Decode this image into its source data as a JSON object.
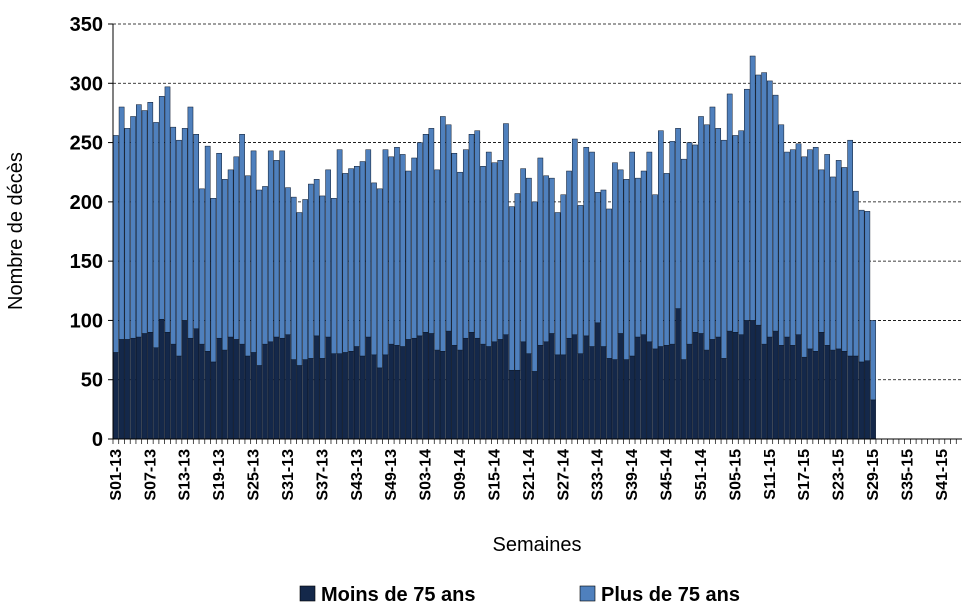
{
  "chart_data": {
    "type": "stacked_bar",
    "y_label": "Nombre de décès",
    "x_label": "Semaines",
    "categories": [
      "S01-13",
      null,
      null,
      null,
      null,
      null,
      "S07-13",
      null,
      null,
      null,
      null,
      null,
      "S13-13",
      null,
      null,
      null,
      null,
      null,
      "S19-13",
      null,
      null,
      null,
      null,
      null,
      "S25-13",
      null,
      null,
      null,
      null,
      null,
      "S31-13",
      null,
      null,
      null,
      null,
      null,
      "S37-13",
      null,
      null,
      null,
      null,
      null,
      "S43-13",
      null,
      null,
      null,
      null,
      null,
      "S49-13",
      null,
      null,
      null,
      null,
      null,
      "S03-14",
      null,
      null,
      null,
      null,
      null,
      "S09-14",
      null,
      null,
      null,
      null,
      null,
      "S15-14",
      null,
      null,
      null,
      null,
      null,
      "S21-14",
      null,
      null,
      null,
      null,
      null,
      "S27-14",
      null,
      null,
      null,
      null,
      null,
      "S33-14",
      null,
      null,
      null,
      null,
      null,
      "S39-14",
      null,
      null,
      null,
      null,
      null,
      "S45-14",
      null,
      null,
      null,
      null,
      null,
      "S51-14",
      null,
      null,
      null,
      null,
      null,
      "S05-15",
      null,
      null,
      null,
      null,
      null,
      "S11-15",
      null,
      null,
      null,
      null,
      null,
      "S17-15",
      null,
      null,
      null,
      null,
      null,
      "S23-15",
      null,
      null,
      null,
      null,
      null,
      "S29-15",
      null,
      null,
      null,
      null,
      null,
      "S35-15",
      null,
      null,
      null,
      null,
      null,
      "S41-15",
      null,
      null,
      null
    ],
    "series": [
      {
        "name": "Moins de 75 ans",
        "color": "#14284a",
        "values": [
          73,
          84,
          84,
          85,
          86,
          89,
          90,
          77,
          101,
          90,
          80,
          70,
          100,
          85,
          93,
          80,
          74,
          65,
          85,
          75,
          86,
          84,
          80,
          70,
          73,
          62,
          80,
          82,
          86,
          85,
          88,
          67,
          62,
          67,
          68,
          87,
          68,
          86,
          72,
          72,
          73,
          74,
          78,
          70,
          86,
          71,
          60,
          71,
          80,
          79,
          78,
          84,
          85,
          87,
          90,
          89,
          75,
          74,
          91,
          79,
          75,
          85,
          90,
          85,
          80,
          78,
          82,
          84,
          88,
          58,
          58,
          82,
          72,
          57,
          79,
          82,
          89,
          71,
          71,
          85,
          88,
          72,
          87,
          78,
          98,
          78,
          68,
          67,
          89,
          67,
          70,
          86,
          88,
          82,
          76,
          78,
          79,
          80,
          110,
          67,
          80,
          90,
          89,
          75,
          84,
          86,
          68,
          91,
          90,
          88,
          100,
          100,
          96,
          80,
          86,
          91,
          79,
          86,
          79,
          88,
          69,
          76,
          74,
          90,
          79,
          75,
          76,
          74,
          70,
          70,
          65,
          66,
          33,
          null,
          null,
          null,
          null,
          null,
          null,
          null,
          null,
          null,
          null,
          null,
          null,
          null,
          null,
          null
        ]
      },
      {
        "name": "Plus de 75 ans",
        "color": "#4f80bd",
        "values": [
          183,
          196,
          178,
          187,
          196,
          188,
          194,
          190,
          188,
          207,
          183,
          182,
          162,
          195,
          164,
          131,
          173,
          138,
          156,
          144,
          141,
          154,
          177,
          152,
          170,
          148,
          133,
          161,
          149,
          158,
          124,
          137,
          129,
          135,
          147,
          132,
          137,
          141,
          131,
          172,
          151,
          154,
          152,
          164,
          158,
          145,
          151,
          173,
          158,
          167,
          162,
          142,
          152,
          163,
          167,
          173,
          152,
          198,
          174,
          162,
          150,
          159,
          167,
          175,
          150,
          164,
          151,
          151,
          178,
          138,
          149,
          146,
          148,
          143,
          158,
          140,
          131,
          120,
          135,
          141,
          165,
          125,
          159,
          164,
          110,
          132,
          126,
          166,
          138,
          152,
          172,
          134,
          138,
          160,
          130,
          182,
          145,
          171,
          152,
          169,
          170,
          158,
          183,
          190,
          196,
          176,
          184,
          200,
          166,
          172,
          195,
          223,
          211,
          229,
          216,
          199,
          186,
          156,
          165,
          161,
          169,
          168,
          172,
          137,
          161,
          146,
          159,
          155,
          182,
          139,
          128,
          126,
          67,
          null,
          null,
          null,
          null,
          null,
          null,
          null,
          null,
          null,
          null,
          null,
          null,
          null,
          null,
          null
        ]
      }
    ],
    "ylim": [
      0,
      350
    ],
    "yticks": [
      0,
      50,
      100,
      150,
      200,
      250,
      300,
      350
    ],
    "grid": true
  }
}
